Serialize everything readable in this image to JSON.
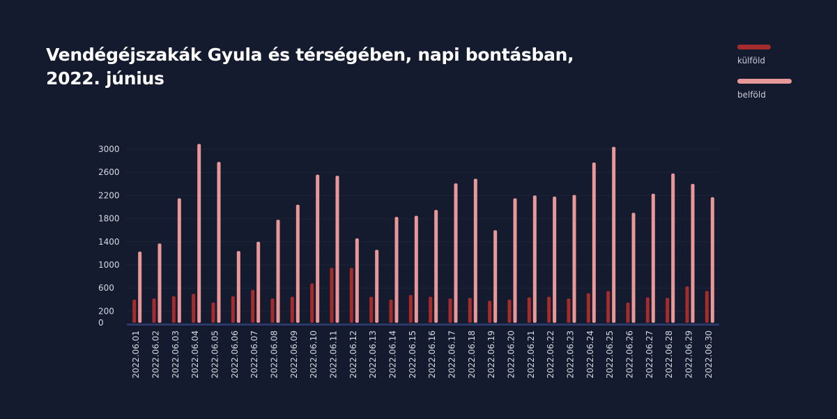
{
  "colors": {
    "background": "#141b2e",
    "kulfold": "#a52c2c",
    "belfold": "#e89898",
    "grid": "#1d2538",
    "baseline": "#2c3a6a"
  },
  "chart_data": {
    "type": "bar",
    "title": "Vendégéjszakák Gyula és térségében, napi bontásban, 2022. június",
    "xlabel": "",
    "ylabel": "",
    "ylim": [
      0,
      3000
    ],
    "yticks": [
      0,
      200,
      600,
      1000,
      1400,
      1800,
      2200,
      2600,
      3000
    ],
    "grid": true,
    "legend_position": "top-right",
    "categories": [
      "2022.06.01",
      "2022.06.02",
      "2022.06.03",
      "2022.06.04",
      "2022.06.05",
      "2022.06.06",
      "2022.06.07",
      "2022.06.08",
      "2022.06.09",
      "2022.06.10",
      "2022.06.11",
      "2022.06.12",
      "2022.06.13",
      "2022.06.14",
      "2022.06.15",
      "2022.06.16",
      "2022.06.17",
      "2022.06.18",
      "2022.06.19",
      "2022.06.20",
      "2022.06.21",
      "2022.06.22",
      "2022.06.23",
      "2022.06.24",
      "2022.06.25",
      "2022.06.26",
      "2022.06.27",
      "2022.06.28",
      "2022.06.29",
      "2022.06.30"
    ],
    "series": [
      {
        "name": "külföld",
        "values": [
          400,
          420,
          460,
          500,
          350,
          460,
          570,
          420,
          450,
          680,
          950,
          950,
          450,
          400,
          480,
          450,
          420,
          430,
          380,
          400,
          440,
          450,
          420,
          510,
          550,
          350,
          440,
          430,
          630,
          550
        ]
      },
      {
        "name": "belföld",
        "values": [
          1230,
          1370,
          2150,
          3090,
          2780,
          1240,
          1400,
          1780,
          2040,
          2560,
          2540,
          1460,
          1260,
          1830,
          1850,
          1950,
          2410,
          2490,
          1600,
          2150,
          2200,
          2180,
          2210,
          2770,
          3040,
          1900,
          2230,
          2580,
          2400,
          2170
        ]
      }
    ]
  }
}
